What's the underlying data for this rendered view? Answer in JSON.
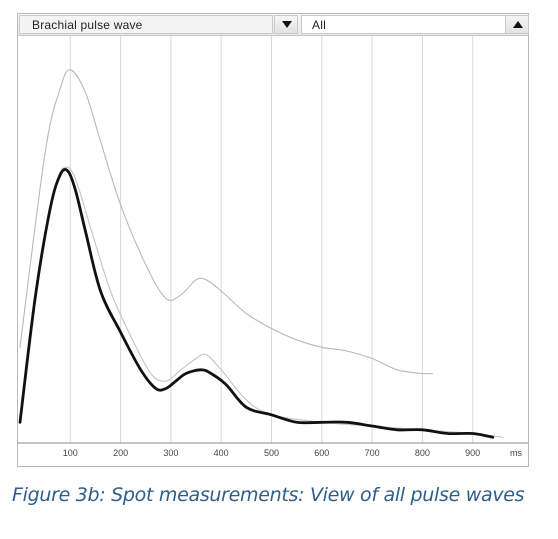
{
  "toolbar": {
    "signal_select": "Brachial pulse wave",
    "filter_select": "All",
    "signal_dropdown_icon": "triangle-down-icon",
    "filter_dropdown_icon": "triangle-up-icon"
  },
  "chart_data": {
    "type": "line",
    "x_unit": "ms",
    "x_ticks": [
      "100",
      "200",
      "300",
      "400",
      "500",
      "600",
      "700",
      "800",
      "900"
    ],
    "xlim": [
      0,
      1000
    ],
    "grid": "vertical",
    "series": [
      {
        "style": "upper-envelope",
        "color": "#b8b8b8",
        "x": [
          0,
          50,
          80,
          100,
          130,
          160,
          200,
          250,
          290,
          320,
          350,
          370,
          400,
          450,
          500,
          550,
          600,
          650,
          700,
          750,
          800,
          820
        ],
        "y": [
          0.25,
          0.77,
          0.94,
          0.99,
          0.93,
          0.8,
          0.63,
          0.47,
          0.38,
          0.39,
          0.43,
          0.43,
          0.4,
          0.34,
          0.3,
          0.27,
          0.25,
          0.24,
          0.22,
          0.19,
          0.18,
          0.18
        ]
      },
      {
        "style": "lower-envelope",
        "color": "#c4c4c4",
        "x": [
          0,
          40,
          70,
          90,
          110,
          140,
          180,
          220,
          260,
          290,
          320,
          350,
          370,
          400,
          450,
          500,
          600,
          700,
          800,
          900,
          960
        ],
        "y": [
          0.06,
          0.48,
          0.68,
          0.73,
          0.7,
          0.57,
          0.4,
          0.28,
          0.18,
          0.16,
          0.19,
          0.22,
          0.23,
          0.19,
          0.11,
          0.07,
          0.05,
          0.04,
          0.03,
          0.02,
          0.01
        ]
      },
      {
        "style": "mean",
        "color": "#111111",
        "x": [
          0,
          30,
          60,
          80,
          95,
          110,
          130,
          160,
          200,
          240,
          270,
          290,
          310,
          330,
          360,
          380,
          410,
          450,
          500,
          550,
          600,
          650,
          700,
          750,
          800,
          850,
          900,
          940
        ],
        "y": [
          0.05,
          0.38,
          0.62,
          0.71,
          0.72,
          0.67,
          0.56,
          0.4,
          0.29,
          0.19,
          0.14,
          0.14,
          0.16,
          0.18,
          0.19,
          0.18,
          0.15,
          0.09,
          0.07,
          0.05,
          0.05,
          0.05,
          0.04,
          0.03,
          0.03,
          0.02,
          0.02,
          0.01
        ]
      }
    ]
  },
  "caption": "Figure 3b: Spot measurements: View of all pulse waves"
}
